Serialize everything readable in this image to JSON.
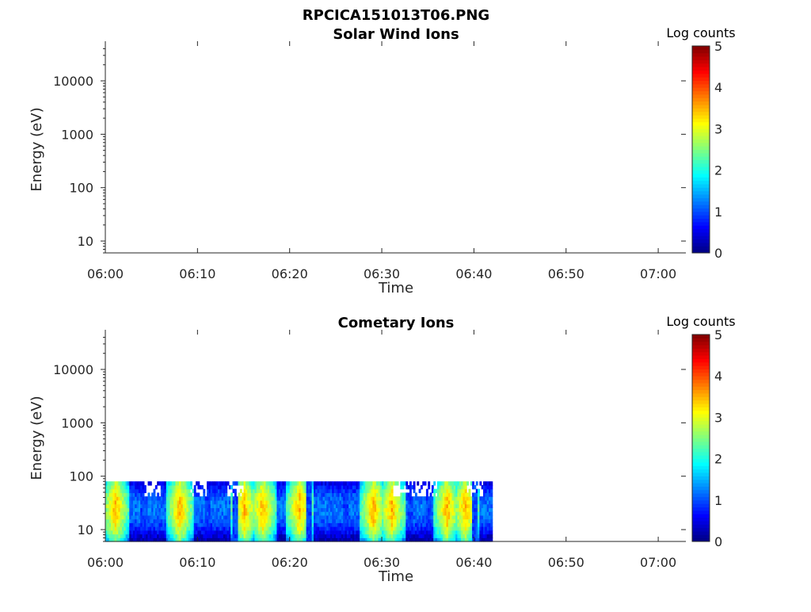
{
  "figure_title": "RPCICA151013T06.PNG",
  "chart_data": [
    {
      "type": "heatmap",
      "title": "Solar Wind Ions",
      "xlabel": "Time",
      "ylabel": "Energy (eV)",
      "y_scale": "log",
      "ylim": [
        6,
        45000
      ],
      "xlim": [
        "06:00",
        "07:03"
      ],
      "x_ticks": [
        "06:00",
        "06:10",
        "06:20",
        "06:30",
        "06:40",
        "06:50",
        "07:00"
      ],
      "y_ticks": [
        10,
        100,
        1000,
        10000
      ],
      "y_tick_labels": [
        "10",
        "100",
        "1000",
        "10000"
      ],
      "colorbar": {
        "label": "Log counts",
        "range": [
          0,
          5
        ],
        "ticks": [
          "0",
          "1",
          "2",
          "3",
          "4",
          "5"
        ],
        "colormap": "jet"
      },
      "data": "none"
    },
    {
      "type": "heatmap",
      "title": "Cometary Ions",
      "xlabel": "Time",
      "ylabel": "Energy (eV)",
      "y_scale": "log",
      "ylim": [
        6,
        45000
      ],
      "xlim": [
        "06:00",
        "07:03"
      ],
      "x_ticks": [
        "06:00",
        "06:10",
        "06:20",
        "06:30",
        "06:40",
        "06:50",
        "07:00"
      ],
      "y_ticks": [
        10,
        100,
        1000,
        10000
      ],
      "y_tick_labels": [
        "10",
        "100",
        "1000",
        "10000"
      ],
      "colorbar": {
        "label": "Log counts",
        "range": [
          0,
          5
        ],
        "ticks": [
          "0",
          "1",
          "2",
          "3",
          "4",
          "5"
        ],
        "colormap": "jet"
      },
      "data_time_range": [
        "06:00",
        "06:42"
      ],
      "data_energy_range_eV": [
        6,
        80
      ],
      "peak_times": [
        "06:01",
        "06:08",
        "06:15",
        "06:17",
        "06:21",
        "06:29",
        "06:31",
        "06:37",
        "06:39"
      ],
      "peak_energy_eV": 25,
      "peak_log_counts": 3.5,
      "low_count_times": [
        "06:04",
        "06:11",
        "06:14",
        "06:22",
        "06:26",
        "06:33",
        "06:35",
        "06:40"
      ],
      "sparse_edge_times": [
        "06:05",
        "06:10",
        "06:14",
        "06:32",
        "06:34",
        "06:35",
        "06:40"
      ]
    }
  ]
}
